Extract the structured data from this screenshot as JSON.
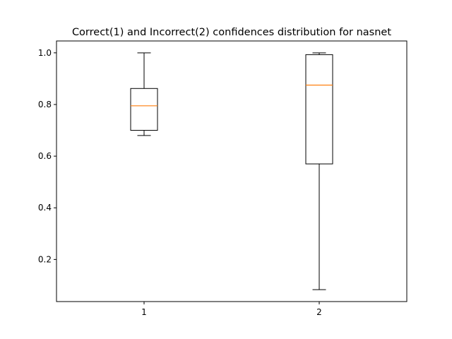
{
  "chart_data": {
    "type": "box",
    "title": "Correct(1) and Incorrect(2) confidences distribution for nasnet",
    "xlabel": "",
    "ylabel": "",
    "categories": [
      "1",
      "2"
    ],
    "boxes": [
      {
        "category": "1",
        "whisker_low": 0.68,
        "q1": 0.7,
        "median": 0.795,
        "q3": 0.862,
        "whisker_high": 1.0
      },
      {
        "category": "2",
        "whisker_low": 0.083,
        "q1": 0.57,
        "median": 0.875,
        "q3": 0.993,
        "whisker_high": 1.0
      }
    ],
    "ylim": [
      0.037,
      1.046
    ],
    "yticks": [
      0.2,
      0.4,
      0.6,
      0.8,
      1.0
    ],
    "ytick_labels": [
      "0.2",
      "0.4",
      "0.6",
      "0.8",
      "1.0"
    ],
    "xtick_labels": [
      "1",
      "2"
    ],
    "grid": false,
    "colors": {
      "box": "#000000",
      "median": "#ff7f0e"
    }
  }
}
